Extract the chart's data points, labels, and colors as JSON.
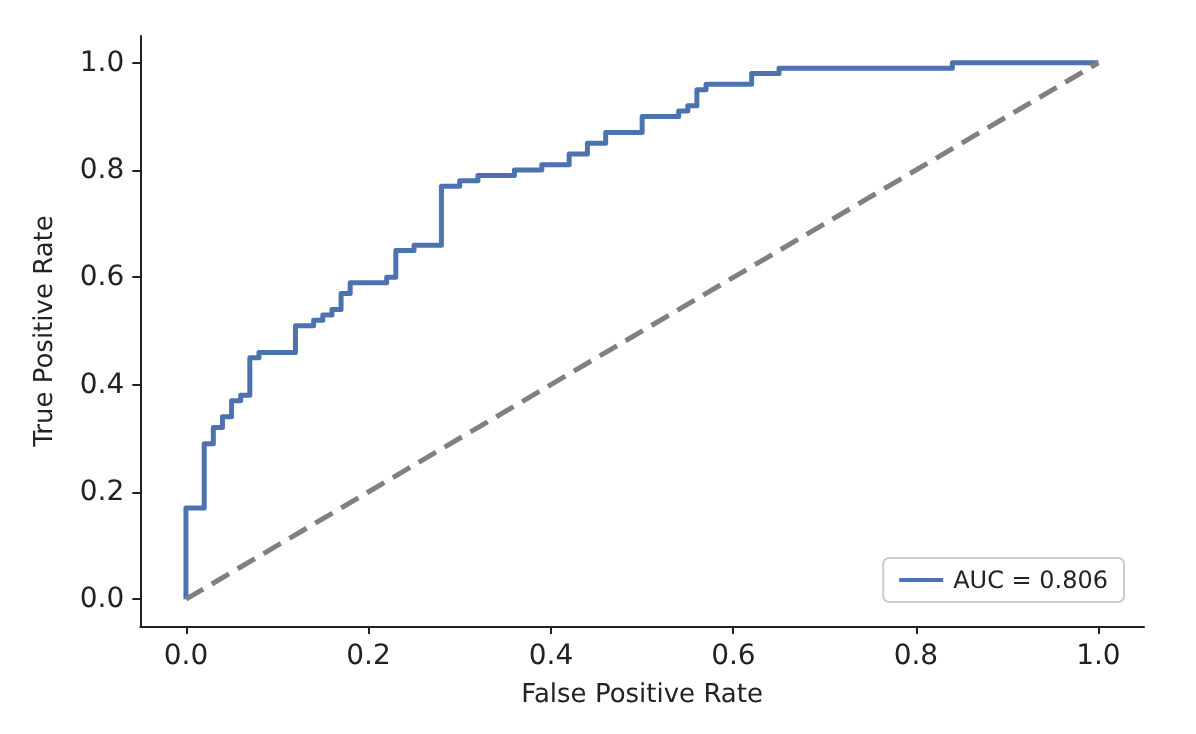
{
  "chart_data": {
    "type": "line",
    "xlabel": "False Positive Rate",
    "ylabel": "True Positive Rate",
    "xlim": [
      -0.05,
      1.05
    ],
    "ylim": [
      -0.05,
      1.05
    ],
    "xticks": [
      {
        "value": 0,
        "label": "0.0"
      },
      {
        "value": 0.2,
        "label": "0.2"
      },
      {
        "value": 0.4,
        "label": "0.4"
      },
      {
        "value": 0.6,
        "label": "0.6"
      },
      {
        "value": 0.8,
        "label": "0.8"
      },
      {
        "value": 1,
        "label": "1.0"
      }
    ],
    "yticks": [
      {
        "value": 0,
        "label": "0.0"
      },
      {
        "value": 0.2,
        "label": "0.2"
      },
      {
        "value": 0.4,
        "label": "0.4"
      },
      {
        "value": 0.6,
        "label": "0.6"
      },
      {
        "value": 0.8,
        "label": "0.8"
      },
      {
        "value": 1,
        "label": "1.0"
      }
    ],
    "grid": false,
    "legend": "bottom right",
    "marker": "none",
    "series": [
      {
        "name": "AUC = 0.806",
        "color": "#4c72b0",
        "line_style": "solid",
        "x": [
          0,
          0,
          0.02,
          0.02,
          0.03,
          0.03,
          0.04,
          0.04,
          0.05,
          0.05,
          0.06,
          0.06,
          0.07,
          0.07,
          0.08,
          0.08,
          0.12,
          0.12,
          0.14,
          0.14,
          0.15,
          0.15,
          0.16,
          0.16,
          0.17,
          0.17,
          0.18,
          0.18,
          0.22,
          0.22,
          0.23,
          0.23,
          0.25,
          0.25,
          0.28,
          0.28,
          0.3,
          0.3,
          0.32,
          0.32,
          0.36,
          0.36,
          0.39,
          0.39,
          0.42,
          0.42,
          0.44,
          0.44,
          0.46,
          0.46,
          0.5,
          0.5,
          0.54,
          0.54,
          0.55,
          0.55,
          0.56,
          0.56,
          0.57,
          0.57,
          0.62,
          0.62,
          0.65,
          0.65,
          0.84,
          0.84,
          1.0
        ],
        "values": [
          0,
          0.17,
          0.17,
          0.29,
          0.29,
          0.32,
          0.32,
          0.34,
          0.34,
          0.37,
          0.37,
          0.38,
          0.38,
          0.45,
          0.45,
          0.46,
          0.46,
          0.51,
          0.51,
          0.52,
          0.52,
          0.53,
          0.53,
          0.54,
          0.54,
          0.57,
          0.57,
          0.59,
          0.59,
          0.6,
          0.6,
          0.65,
          0.65,
          0.66,
          0.66,
          0.77,
          0.77,
          0.78,
          0.78,
          0.79,
          0.79,
          0.8,
          0.8,
          0.81,
          0.81,
          0.83,
          0.83,
          0.85,
          0.85,
          0.87,
          0.87,
          0.9,
          0.9,
          0.91,
          0.91,
          0.92,
          0.92,
          0.95,
          0.95,
          0.96,
          0.96,
          0.98,
          0.98,
          0.99,
          0.99,
          1.0,
          1.0
        ]
      },
      {
        "color": "#808080",
        "line_style": "dashed",
        "x": [
          0,
          1
        ],
        "values": [
          0,
          1
        ]
      }
    ]
  }
}
